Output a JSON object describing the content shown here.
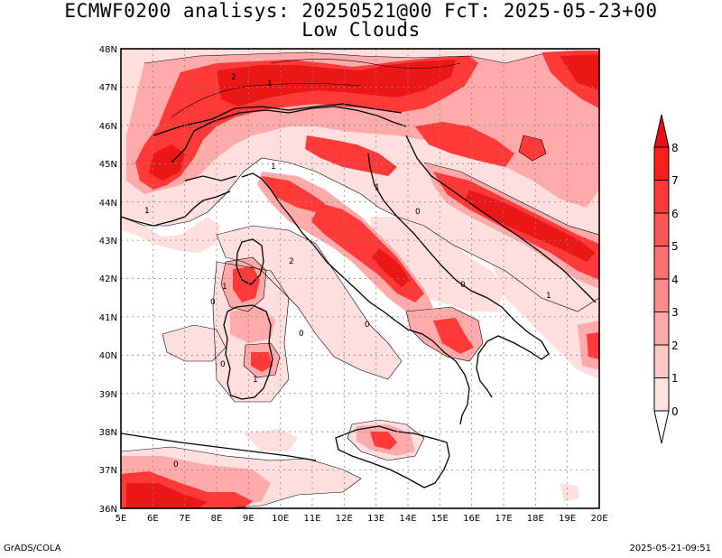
{
  "header": {
    "title_line1": "ECMWF0200 analisys: 20250521@00 FcT: 2025-05-23+00",
    "title_line2": "Low Clouds"
  },
  "map": {
    "lat_labels": [
      "48N",
      "47N",
      "46N",
      "45N",
      "44N",
      "43N",
      "42N",
      "41N",
      "40N",
      "39N",
      "38N",
      "37N",
      "36N"
    ],
    "lon_labels": [
      "5E",
      "6E",
      "7E",
      "8E",
      "9E",
      "10E",
      "11E",
      "12E",
      "13E",
      "14E",
      "15E",
      "16E",
      "17E",
      "18E",
      "19E",
      "20E"
    ],
    "contour_labels": [
      "1",
      "2",
      "1",
      "0",
      "1",
      "0",
      "1",
      "2",
      "0",
      "1",
      "0",
      "1",
      "0",
      "0",
      "1",
      "0"
    ]
  },
  "colorbar": {
    "ticks": [
      "0",
      "1",
      "2",
      "3",
      "4",
      "5",
      "6",
      "7",
      "8"
    ],
    "colors": [
      "#ffffff",
      "#ffe2e2",
      "#ffc6c6",
      "#ffaaaa",
      "#ff8c8c",
      "#ff7070",
      "#ff5454",
      "#ff3838",
      "#ff1c1c",
      "#e81010"
    ]
  },
  "footer": {
    "left": "GrADS/COLA",
    "right": "2025-05-21-09:51"
  }
}
